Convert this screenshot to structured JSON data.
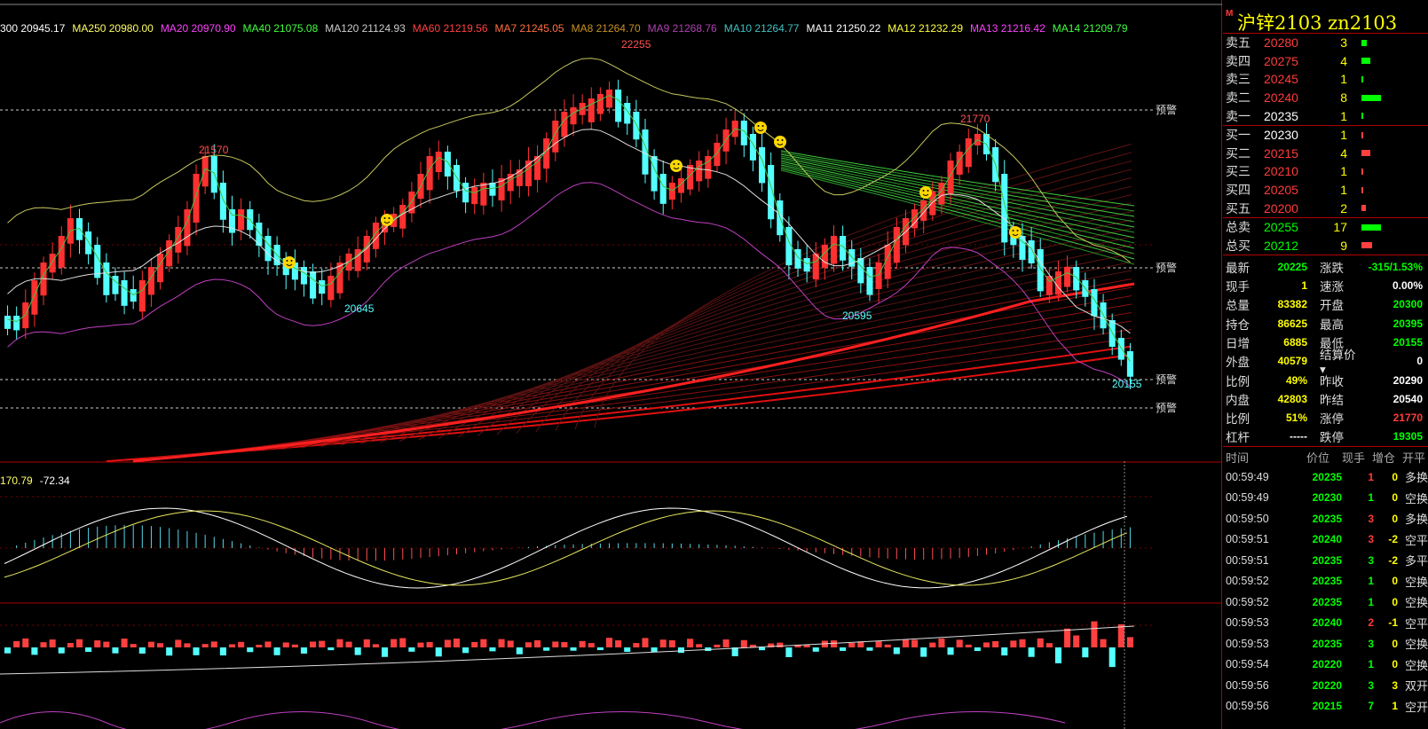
{
  "colors": {
    "up": "#ff3030",
    "down": "#54ffff",
    "bg": "#000000",
    "frame": "#b00000",
    "yellow": "#ffff00",
    "green": "#00ff00",
    "red": "#ff3b3b"
  },
  "ma_legend": [
    {
      "text": "300 20945.17",
      "color": "#ffffff"
    },
    {
      "text": "MA250 20980.00",
      "color": "#ffff66"
    },
    {
      "text": "MA20 20970.90",
      "color": "#ff40ff"
    },
    {
      "text": "MA40 21075.08",
      "color": "#40ff40"
    },
    {
      "text": "MA120 21124.93",
      "color": "#cccccc"
    },
    {
      "text": "MA60 21219.56",
      "color": "#ff4040"
    },
    {
      "text": "MA7 21245.05",
      "color": "#ff7040"
    },
    {
      "text": "MA8 21264.70",
      "color": "#c89020"
    },
    {
      "text": "MA9 21268.76",
      "color": "#b040b0"
    },
    {
      "text": "MA10 21264.77",
      "color": "#40c0c0"
    },
    {
      "text": "MA11 21250.22",
      "color": "#ffffff"
    },
    {
      "text": "MA12 21232.29",
      "color": "#ffff40"
    },
    {
      "text": "MA13 21216.42",
      "color": "#ff40ff"
    },
    {
      "text": "MA14 21209.79",
      "color": "#40ff40"
    }
  ],
  "macd_legend": [
    {
      "text": "170.79",
      "color": "#ffff66"
    },
    {
      "text": "-72.34",
      "color": "#ffffff"
    }
  ],
  "chart_labels": {
    "high_22255": "22255",
    "high_21570": "21570",
    "high_21770": "21770",
    "low_20645": "20645",
    "low_20595": "20595",
    "low_20155": "20155",
    "warn": "预警"
  },
  "header": {
    "mark": "M",
    "title": "沪锌2103  zn2103"
  },
  "asks": [
    {
      "label": "卖五",
      "price": "20280",
      "vol": "3",
      "bar": 6
    },
    {
      "label": "卖四",
      "price": "20275",
      "vol": "4",
      "bar": 10
    },
    {
      "label": "卖三",
      "price": "20245",
      "vol": "1",
      "bar": 2
    },
    {
      "label": "卖二",
      "price": "20240",
      "vol": "8",
      "bar": 22
    },
    {
      "label": "卖一",
      "price": "20235",
      "vol": "1",
      "bar": 2
    }
  ],
  "bids": [
    {
      "label": "买一",
      "price": "20230",
      "vol": "1",
      "bar": 2
    },
    {
      "label": "买二",
      "price": "20215",
      "vol": "4",
      "bar": 10
    },
    {
      "label": "买三",
      "price": "20210",
      "vol": "1",
      "bar": 2
    },
    {
      "label": "买四",
      "price": "20205",
      "vol": "1",
      "bar": 2
    },
    {
      "label": "买五",
      "price": "20200",
      "vol": "2",
      "bar": 5
    }
  ],
  "totals": [
    {
      "label": "总卖",
      "price": "20255",
      "vol": "17",
      "bar": 22,
      "color": "grn",
      "barcolor": "#00ff00"
    },
    {
      "label": "总买",
      "price": "20212",
      "vol": "9",
      "bar": 12,
      "color": "grn",
      "barcolor": "#ff4040"
    }
  ],
  "stats": [
    {
      "k": "最新",
      "v": "20225",
      "vc": "grn",
      "k2": "涨跌",
      "v2": "-315/1.53%",
      "v2c": "grn"
    },
    {
      "k": "现手",
      "v": "1",
      "vc": "yel",
      "k2": "速涨",
      "v2": "0.00%",
      "v2c": "wht"
    },
    {
      "k": "总量",
      "v": "83382",
      "vc": "yel",
      "k2": "开盘",
      "v2": "20300",
      "v2c": "grn"
    },
    {
      "k": "持仓",
      "v": "86625",
      "vc": "yel",
      "k2": "最高",
      "v2": "20395",
      "v2c": "grn"
    },
    {
      "k": "日增",
      "v": "6885",
      "vc": "yel",
      "k2": "最低",
      "v2": "20155",
      "v2c": "grn"
    },
    {
      "k": "外盘",
      "v": "40579",
      "vc": "yel",
      "k2": "结算价▾",
      "v2": "0",
      "v2c": "wht"
    },
    {
      "k": "比例",
      "v": "49%",
      "vc": "yel",
      "k2": "昨收",
      "v2": "20290",
      "v2c": "wht"
    },
    {
      "k": "内盘",
      "v": "42803",
      "vc": "yel",
      "k2": "昨结",
      "v2": "20540",
      "v2c": "wht"
    },
    {
      "k": "比例",
      "v": "51%",
      "vc": "yel",
      "k2": "涨停",
      "v2": "21770",
      "v2c": "red"
    },
    {
      "k": "杠杆",
      "v": "-----",
      "vc": "wht",
      "k2": "跌停",
      "v2": "19305",
      "v2c": "grn"
    }
  ],
  "trades_head": [
    "时间",
    "价位",
    "现手",
    "增仓",
    "开平"
  ],
  "trades": [
    {
      "t": "00:59:49",
      "p": "20235",
      "h": "1",
      "hc": "red",
      "z": "0",
      "o": "多换"
    },
    {
      "t": "00:59:49",
      "p": "20230",
      "h": "1",
      "hc": "grn",
      "z": "0",
      "o": "空换"
    },
    {
      "t": "00:59:50",
      "p": "20235",
      "h": "3",
      "hc": "red",
      "z": "0",
      "o": "多换"
    },
    {
      "t": "00:59:51",
      "p": "20240",
      "h": "3",
      "hc": "red",
      "z": "-2",
      "o": "空平"
    },
    {
      "t": "00:59:51",
      "p": "20235",
      "h": "3",
      "hc": "grn",
      "z": "-2",
      "o": "多平"
    },
    {
      "t": "00:59:52",
      "p": "20235",
      "h": "1",
      "hc": "grn",
      "z": "0",
      "o": "空换"
    },
    {
      "t": "00:59:52",
      "p": "20235",
      "h": "1",
      "hc": "grn",
      "z": "0",
      "o": "空换"
    },
    {
      "t": "00:59:53",
      "p": "20240",
      "h": "2",
      "hc": "red",
      "z": "-1",
      "o": "空平"
    },
    {
      "t": "00:59:53",
      "p": "20235",
      "h": "3",
      "hc": "grn",
      "z": "0",
      "o": "空换"
    },
    {
      "t": "00:59:54",
      "p": "20220",
      "h": "1",
      "hc": "grn",
      "z": "0",
      "o": "空换"
    },
    {
      "t": "00:59:56",
      "p": "20220",
      "h": "3",
      "hc": "grn",
      "z": "3",
      "o": "双开"
    },
    {
      "t": "00:59:56",
      "p": "20215",
      "h": "7",
      "hc": "grn",
      "z": "1",
      "o": "空开"
    }
  ]
}
